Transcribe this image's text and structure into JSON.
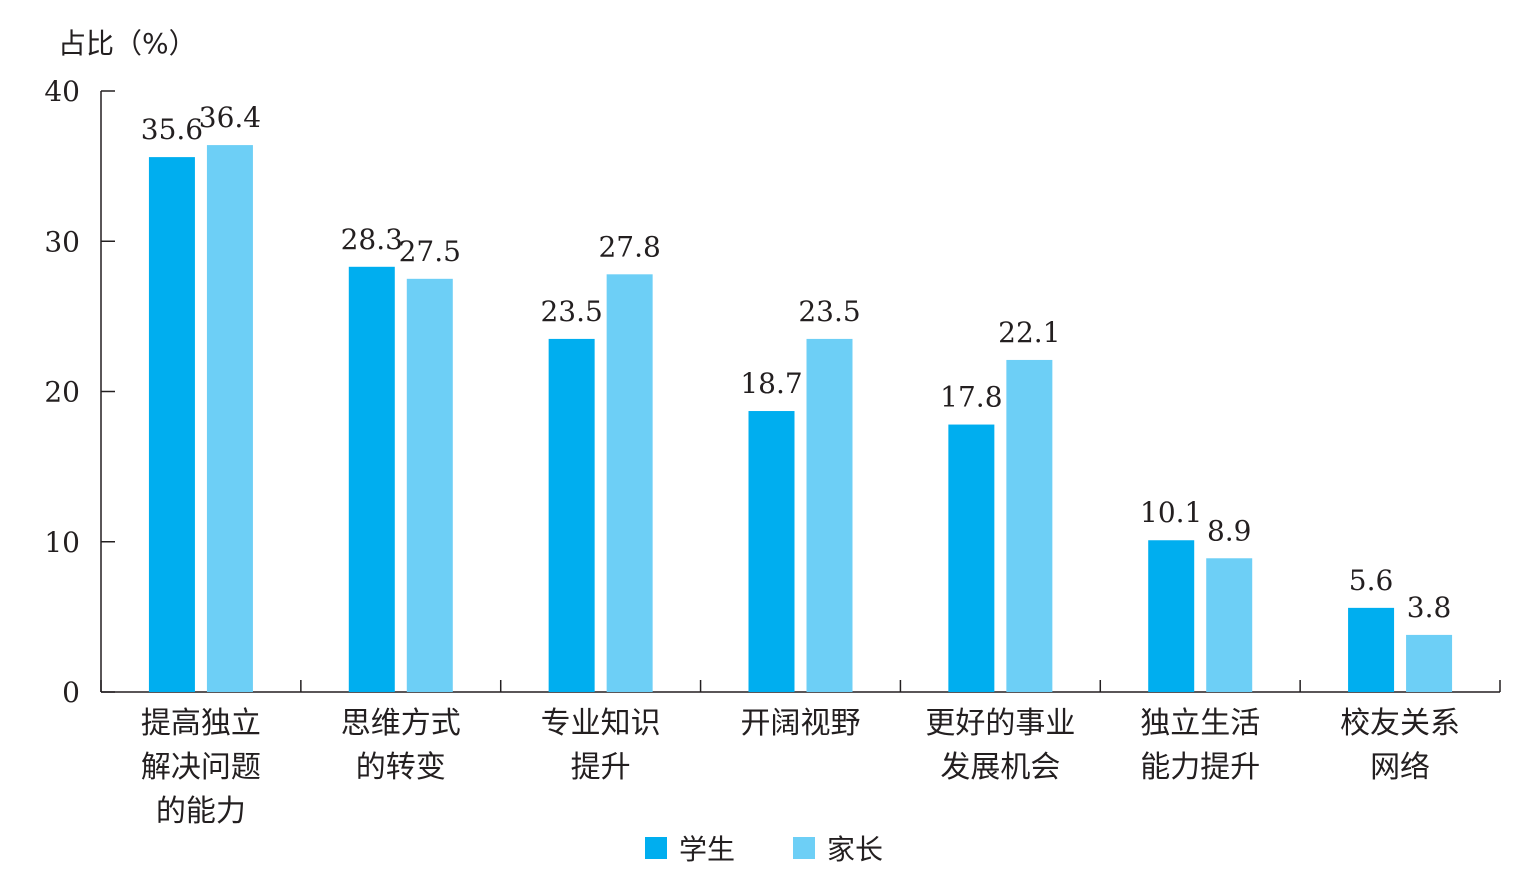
{
  "chart_data": {
    "type": "bar",
    "ylabel": "占比（%）",
    "ylim": [
      0,
      40
    ],
    "yticks": [
      0,
      10,
      20,
      30,
      40
    ],
    "categories": [
      [
        "提高独立",
        "解决问题",
        "的能力"
      ],
      [
        "思维方式",
        "的转变"
      ],
      [
        "专业知识",
        "提升"
      ],
      [
        "开阔视野"
      ],
      [
        "更好的事业",
        "发展机会"
      ],
      [
        "独立生活",
        "能力提升"
      ],
      [
        "校友关系",
        "网络"
      ]
    ],
    "series": [
      {
        "name": "学生",
        "color": "#00aeef",
        "values": [
          35.6,
          28.3,
          23.5,
          18.7,
          17.8,
          10.1,
          5.6
        ]
      },
      {
        "name": "家长",
        "color": "#6dcff6",
        "values": [
          36.4,
          27.5,
          27.8,
          23.5,
          22.1,
          8.9,
          3.8
        ]
      }
    ],
    "legend_position": "bottom-center",
    "grid": false
  }
}
